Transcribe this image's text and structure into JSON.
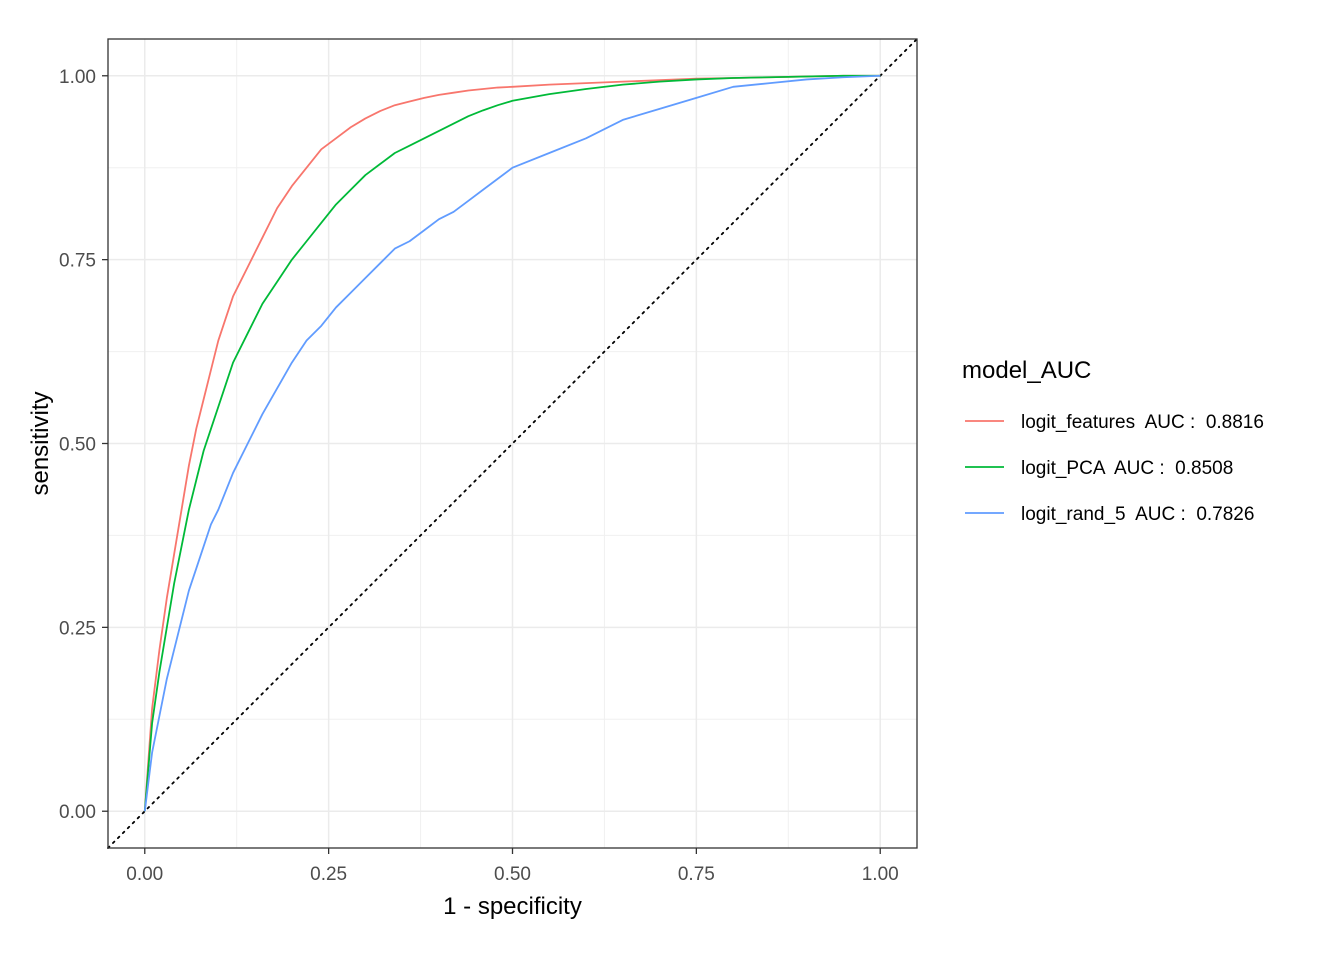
{
  "chart_data": {
    "type": "line",
    "xlabel": "1 - specificity",
    "ylabel": "sensitivity",
    "xlim": [
      -0.05,
      1.05
    ],
    "ylim": [
      -0.05,
      1.05
    ],
    "x_ticks": [
      0.0,
      0.25,
      0.5,
      0.75,
      1.0
    ],
    "x_tick_labels": [
      "0.00",
      "0.25",
      "0.50",
      "0.75",
      "1.00"
    ],
    "y_ticks": [
      0.0,
      0.25,
      0.5,
      0.75,
      1.0
    ],
    "y_tick_labels": [
      "0.00",
      "0.25",
      "0.50",
      "0.75",
      "1.00"
    ],
    "grid": true,
    "legend": {
      "title": "model_AUC",
      "position": "right"
    },
    "reference_line": {
      "style": "dotted",
      "color": "#000000",
      "from": [
        -0.05,
        -0.05
      ],
      "to": [
        1.05,
        1.05
      ]
    },
    "series": [
      {
        "name": "logit_features  AUC :  0.8816",
        "color": "#F8766D",
        "x": [
          0.0,
          0.005,
          0.01,
          0.02,
          0.03,
          0.04,
          0.05,
          0.06,
          0.07,
          0.08,
          0.09,
          0.1,
          0.11,
          0.12,
          0.13,
          0.14,
          0.15,
          0.16,
          0.17,
          0.18,
          0.19,
          0.2,
          0.22,
          0.24,
          0.26,
          0.28,
          0.3,
          0.32,
          0.34,
          0.36,
          0.38,
          0.4,
          0.42,
          0.44,
          0.46,
          0.48,
          0.5,
          0.55,
          0.6,
          0.65,
          0.7,
          0.75,
          0.8,
          0.85,
          0.9,
          0.95,
          1.0
        ],
        "y": [
          0.0,
          0.07,
          0.14,
          0.22,
          0.29,
          0.35,
          0.41,
          0.47,
          0.52,
          0.56,
          0.6,
          0.64,
          0.67,
          0.7,
          0.72,
          0.74,
          0.76,
          0.78,
          0.8,
          0.82,
          0.835,
          0.85,
          0.875,
          0.9,
          0.915,
          0.93,
          0.942,
          0.952,
          0.96,
          0.965,
          0.97,
          0.974,
          0.977,
          0.98,
          0.982,
          0.984,
          0.985,
          0.988,
          0.99,
          0.992,
          0.994,
          0.996,
          0.997,
          0.998,
          0.999,
          1.0,
          1.0
        ]
      },
      {
        "name": "logit_PCA  AUC :  0.8508",
        "color": "#00BA38",
        "x": [
          0.0,
          0.005,
          0.01,
          0.02,
          0.03,
          0.04,
          0.05,
          0.06,
          0.07,
          0.08,
          0.09,
          0.1,
          0.11,
          0.12,
          0.14,
          0.16,
          0.18,
          0.2,
          0.22,
          0.24,
          0.26,
          0.28,
          0.3,
          0.32,
          0.34,
          0.36,
          0.38,
          0.4,
          0.42,
          0.44,
          0.46,
          0.48,
          0.5,
          0.55,
          0.6,
          0.65,
          0.7,
          0.75,
          0.8,
          0.85,
          0.9,
          0.95,
          1.0
        ],
        "y": [
          0.0,
          0.06,
          0.12,
          0.19,
          0.25,
          0.31,
          0.36,
          0.41,
          0.45,
          0.49,
          0.52,
          0.55,
          0.58,
          0.61,
          0.65,
          0.69,
          0.72,
          0.75,
          0.775,
          0.8,
          0.825,
          0.845,
          0.865,
          0.88,
          0.895,
          0.905,
          0.915,
          0.925,
          0.935,
          0.945,
          0.953,
          0.96,
          0.966,
          0.975,
          0.982,
          0.988,
          0.992,
          0.995,
          0.997,
          0.998,
          0.999,
          1.0,
          1.0
        ]
      },
      {
        "name": "logit_rand_5  AUC :  0.7826",
        "color": "#619CFF",
        "x": [
          0.0,
          0.005,
          0.01,
          0.02,
          0.03,
          0.04,
          0.05,
          0.06,
          0.07,
          0.08,
          0.09,
          0.1,
          0.12,
          0.14,
          0.16,
          0.18,
          0.2,
          0.22,
          0.24,
          0.26,
          0.28,
          0.3,
          0.32,
          0.34,
          0.36,
          0.38,
          0.4,
          0.42,
          0.44,
          0.46,
          0.48,
          0.5,
          0.55,
          0.6,
          0.65,
          0.7,
          0.75,
          0.8,
          0.85,
          0.9,
          0.95,
          1.0
        ],
        "y": [
          0.0,
          0.04,
          0.08,
          0.13,
          0.18,
          0.22,
          0.26,
          0.3,
          0.33,
          0.36,
          0.39,
          0.41,
          0.46,
          0.5,
          0.54,
          0.575,
          0.61,
          0.64,
          0.66,
          0.685,
          0.705,
          0.725,
          0.745,
          0.765,
          0.775,
          0.79,
          0.805,
          0.815,
          0.83,
          0.845,
          0.86,
          0.875,
          0.895,
          0.915,
          0.94,
          0.955,
          0.97,
          0.985,
          0.99,
          0.995,
          0.998,
          1.0
        ]
      }
    ]
  }
}
